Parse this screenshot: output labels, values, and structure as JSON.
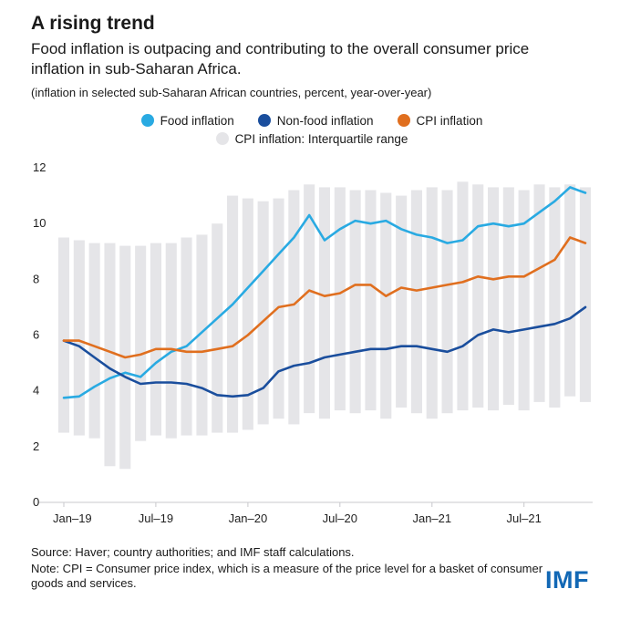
{
  "header": {
    "title": "A rising trend",
    "subtitle": "Food inflation is outpacing and contributing to the overall consumer price inflation in sub-Saharan Africa.",
    "units": "(inflation in selected sub-Saharan African countries, percent, year-over-year)"
  },
  "legend": {
    "items": [
      {
        "label": "Food inflation",
        "color": "#29aae2"
      },
      {
        "label": "Non-food inflation",
        "color": "#1a4e9d"
      },
      {
        "label": "CPI inflation",
        "color": "#e06f1f"
      },
      {
        "label": "CPI inflation: Interquartile range",
        "color": "#e5e5e8"
      }
    ]
  },
  "chart_data": {
    "type": "line",
    "title": "A rising trend",
    "xlabel": "",
    "ylabel": "inflation, percent, year-over-year",
    "ylim": [
      0,
      12
    ],
    "yticks": [
      0,
      2,
      4,
      6,
      8,
      10,
      12
    ],
    "grid": false,
    "legend_position": "top-center",
    "x": [
      "Jan-19",
      "Feb-19",
      "Mar-19",
      "Apr-19",
      "May-19",
      "Jun-19",
      "Jul-19",
      "Aug-19",
      "Sep-19",
      "Oct-19",
      "Nov-19",
      "Dec-19",
      "Jan-20",
      "Feb-20",
      "Mar-20",
      "Apr-20",
      "May-20",
      "Jun-20",
      "Jul-20",
      "Aug-20",
      "Sep-20",
      "Oct-20",
      "Nov-20",
      "Dec-20",
      "Jan-21",
      "Feb-21",
      "Mar-21",
      "Apr-21",
      "May-21",
      "Jun-21",
      "Jul-21",
      "Aug-21",
      "Sep-21",
      "Oct-21",
      "Nov-21"
    ],
    "xtick_labels": [
      "Jan–19",
      "Jul–19",
      "Jan–20",
      "Jul–20",
      "Jan–21",
      "Jul–21"
    ],
    "xtick_positions": [
      0,
      6,
      12,
      18,
      24,
      30
    ],
    "series": [
      {
        "name": "Food inflation",
        "color": "#29aae2",
        "values": [
          3.75,
          3.8,
          4.15,
          4.45,
          4.65,
          4.5,
          5.0,
          5.4,
          5.6,
          6.1,
          6.6,
          7.1,
          7.7,
          8.3,
          8.9,
          9.5,
          10.3,
          9.4,
          9.8,
          10.1,
          10.0,
          10.1,
          9.8,
          9.6,
          9.5,
          9.3,
          9.4,
          9.9,
          10.0,
          9.9,
          10.0,
          10.4,
          10.8,
          11.3,
          11.1
        ]
      },
      {
        "name": "Non-food inflation",
        "color": "#1a4e9d",
        "values": [
          5.8,
          5.6,
          5.2,
          4.8,
          4.5,
          4.25,
          4.3,
          4.3,
          4.25,
          4.1,
          3.85,
          3.8,
          3.85,
          4.1,
          4.7,
          4.9,
          5.0,
          5.2,
          5.3,
          5.4,
          5.5,
          5.5,
          5.6,
          5.6,
          5.5,
          5.4,
          5.6,
          6.0,
          6.2,
          6.1,
          6.2,
          6.3,
          6.4,
          6.6,
          7.0
        ]
      },
      {
        "name": "CPI inflation",
        "color": "#e06f1f",
        "values": [
          5.8,
          5.8,
          5.6,
          5.4,
          5.2,
          5.3,
          5.5,
          5.5,
          5.4,
          5.4,
          5.5,
          5.6,
          6.0,
          6.5,
          7.0,
          7.1,
          7.6,
          7.4,
          7.5,
          7.8,
          7.8,
          7.4,
          7.7,
          7.6,
          7.7,
          7.8,
          7.9,
          8.1,
          8.0,
          8.1,
          8.1,
          8.4,
          8.7,
          9.5,
          9.3
        ]
      }
    ],
    "band": {
      "name": "CPI inflation: Interquartile range",
      "color": "#e5e5e8",
      "low": [
        2.5,
        2.4,
        2.3,
        1.3,
        1.2,
        2.2,
        2.4,
        2.3,
        2.4,
        2.4,
        2.5,
        2.5,
        2.6,
        2.8,
        3.0,
        2.8,
        3.2,
        3.0,
        3.3,
        3.2,
        3.3,
        3.0,
        3.4,
        3.2,
        3.0,
        3.2,
        3.3,
        3.4,
        3.3,
        3.5,
        3.3,
        3.6,
        3.4,
        3.8,
        3.6
      ],
      "high": [
        9.5,
        9.4,
        9.3,
        9.3,
        9.2,
        9.2,
        9.3,
        9.3,
        9.5,
        9.6,
        10.0,
        11.0,
        10.9,
        10.8,
        10.9,
        11.2,
        11.4,
        11.3,
        11.3,
        11.2,
        11.2,
        11.1,
        11.0,
        11.2,
        11.3,
        11.2,
        11.5,
        11.4,
        11.3,
        11.3,
        11.2,
        11.4,
        11.3,
        11.4,
        11.3
      ]
    }
  },
  "footer": {
    "source": "Source: Haver; country authorities; and IMF staff calculations.",
    "note": "Note: CPI = Consumer price index, which is a measure of the price level for a basket of consumer goods and services.",
    "logo": "IMF",
    "logo_color": "#1268b5"
  }
}
